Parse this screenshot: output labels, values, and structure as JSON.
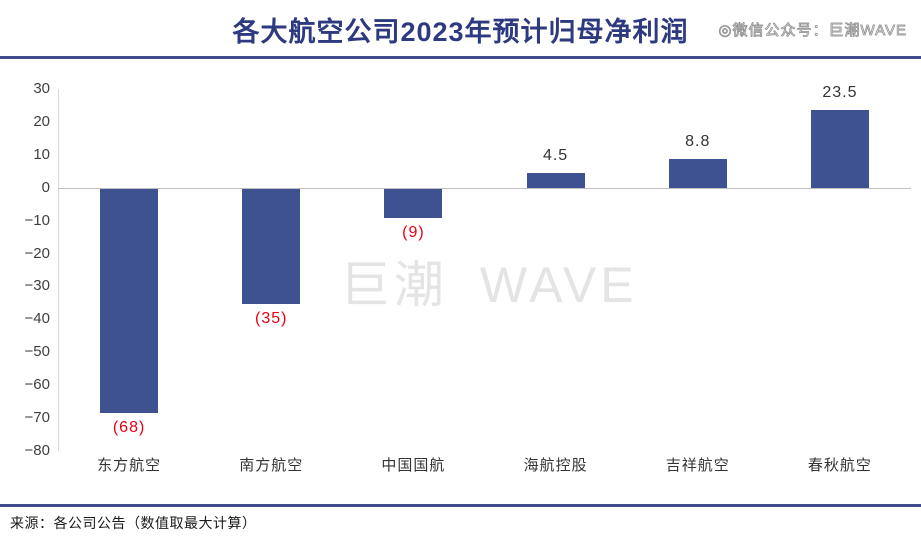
{
  "header": {
    "title": "各大航空公司2023年预计归母净利润",
    "watermark_top": "◎微信公众号：巨潮WAVE"
  },
  "chart_data": {
    "type": "bar",
    "title": "各大航空公司2023年预计归母净利润",
    "categories": [
      "东方航空",
      "南方航空",
      "中国国航",
      "海航控股",
      "吉祥航空",
      "春秋航空"
    ],
    "values": [
      -68,
      -35,
      -9,
      4.5,
      8.8,
      23.5
    ],
    "value_labels": [
      "(68)",
      "(35)",
      "(9)",
      "4.5",
      "8.8",
      "23.5"
    ],
    "xlabel": "",
    "ylabel": "",
    "ylim": [
      -80,
      30
    ],
    "yticks": [
      30,
      20,
      10,
      0,
      -10,
      -20,
      -30,
      -40,
      -50,
      -60,
      -70,
      -80
    ],
    "grid": false,
    "legend": false,
    "bar_color": "#3e5191",
    "negative_label_color": "#e60012",
    "positive_label_color": "#333333",
    "watermark": "巨潮 WAVE"
  },
  "footer": {
    "source": "来源：各公司公告（数值取最大计算）"
  }
}
